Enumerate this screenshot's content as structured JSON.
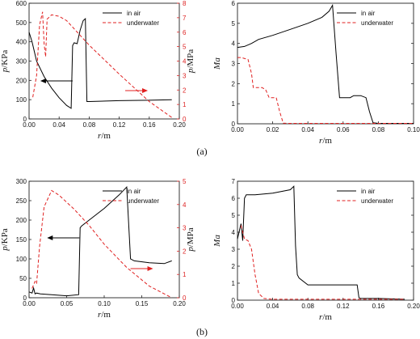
{
  "legend": {
    "air": "in air",
    "water": "underwater"
  },
  "colors": {
    "air": "#000000",
    "water": "#e02020"
  },
  "captions": [
    "(a)",
    "(b)"
  ],
  "chart_data": [
    {
      "panel": "a-left",
      "type": "line",
      "xlabel_var": "r",
      "xlabel_unit": "/m",
      "ylabel_var": "p",
      "ylabel_unit": "/KPa",
      "y2label_var": "p",
      "y2label_unit": "/MPa",
      "xlim": [
        0,
        0.2
      ],
      "ylim": [
        0,
        600
      ],
      "y2lim": [
        0,
        8
      ],
      "xticks": [
        "0.00",
        "0.04",
        "0.08",
        "0.12",
        "0.16",
        "0.20"
      ],
      "yticks": [
        "0",
        "100",
        "200",
        "300",
        "400",
        "500",
        "600"
      ],
      "y2ticks": [
        "0",
        "1",
        "2",
        "3",
        "4",
        "5",
        "6",
        "7",
        "8"
      ],
      "series": [
        {
          "name": "in air",
          "axis": "y",
          "x": [
            0,
            0.004,
            0.01,
            0.02,
            0.03,
            0.04,
            0.05,
            0.056,
            0.058,
            0.06,
            0.064,
            0.068,
            0.072,
            0.075,
            0.077,
            0.08,
            0.12,
            0.16,
            0.19
          ],
          "y": [
            450,
            400,
            300,
            220,
            160,
            110,
            70,
            55,
            380,
            395,
            390,
            460,
            510,
            520,
            90,
            90,
            95,
            97,
            100
          ]
        },
        {
          "name": "underwater",
          "axis": "y2",
          "x": [
            0.005,
            0.01,
            0.014,
            0.018,
            0.02,
            0.022,
            0.024,
            0.03,
            0.04,
            0.05,
            0.08,
            0.12,
            0.16,
            0.19
          ],
          "y": [
            1.5,
            3,
            6.5,
            7.4,
            5.2,
            4.3,
            6.9,
            7.2,
            7.1,
            6.8,
            5.1,
            3.1,
            1.2,
            0.1
          ]
        }
      ],
      "arrows": [
        {
          "dir": "left",
          "color": "#000000"
        },
        {
          "dir": "right",
          "color": "#e02020"
        }
      ]
    },
    {
      "panel": "a-right",
      "type": "line",
      "xlabel_var": "r",
      "xlabel_unit": "/m",
      "ylabel_var": "Ma",
      "ylabel_unit": "",
      "xlim": [
        0,
        0.1
      ],
      "ylim": [
        0,
        6
      ],
      "xticks": [
        "0.00",
        "0.02",
        "0.04",
        "0.06",
        "0.08",
        "0.10"
      ],
      "yticks": [
        "0",
        "1",
        "2",
        "3",
        "4",
        "5",
        "6"
      ],
      "series": [
        {
          "name": "in air",
          "x": [
            0,
            0.004,
            0.008,
            0.012,
            0.02,
            0.03,
            0.04,
            0.048,
            0.052,
            0.054,
            0.056,
            0.058,
            0.06,
            0.064,
            0.066,
            0.07,
            0.073,
            0.075,
            0.077,
            0.08,
            0.09,
            0.1
          ],
          "y": [
            3.8,
            3.85,
            4.0,
            4.2,
            4.4,
            4.7,
            5.0,
            5.3,
            5.6,
            5.9,
            3.5,
            1.3,
            1.3,
            1.3,
            1.4,
            1.4,
            1.3,
            0.6,
            0.05,
            0.02,
            0.02,
            0.02
          ]
        },
        {
          "name": "underwater",
          "x": [
            0,
            0.002,
            0.006,
            0.008,
            0.009,
            0.012,
            0.014,
            0.016,
            0.018,
            0.022,
            0.024,
            0.026,
            0.03,
            0.05,
            0.07,
            0.1
          ],
          "y": [
            3.3,
            3.3,
            3.2,
            2.5,
            1.8,
            1.8,
            1.8,
            1.7,
            1.3,
            1.3,
            0.6,
            0.03,
            0.02,
            0.02,
            0.02,
            0.02
          ]
        }
      ]
    },
    {
      "panel": "b-left",
      "type": "line",
      "xlabel_var": "r",
      "xlabel_unit": "/m",
      "ylabel_var": "p",
      "ylabel_unit": "/KPa",
      "y2label_var": "p",
      "y2label_unit": "/MPa",
      "xlim": [
        0,
        0.2
      ],
      "ylim": [
        0,
        300
      ],
      "y2lim": [
        0,
        5
      ],
      "xticks": [
        "0.00",
        "0.05",
        "0.10",
        "0.15",
        "0.20"
      ],
      "yticks": [
        "0",
        "50",
        "100",
        "150",
        "200",
        "250",
        "300"
      ],
      "y2ticks": [
        "0",
        "1",
        "2",
        "3",
        "4",
        "5"
      ],
      "series": [
        {
          "name": "in air",
          "axis": "y",
          "x": [
            0,
            0.004,
            0.006,
            0.008,
            0.01,
            0.015,
            0.03,
            0.05,
            0.066,
            0.068,
            0.07,
            0.08,
            0.1,
            0.12,
            0.13,
            0.135,
            0.14,
            0.16,
            0.18,
            0.19
          ],
          "y": [
            15,
            12,
            25,
            10,
            12,
            10,
            8,
            5,
            8,
            180,
            185,
            200,
            230,
            265,
            285,
            100,
            95,
            90,
            88,
            95
          ]
        },
        {
          "name": "underwater",
          "axis": "y2",
          "x": [
            0.004,
            0.008,
            0.01,
            0.014,
            0.02,
            0.03,
            0.04,
            0.06,
            0.08,
            0.1,
            0.13,
            0.16,
            0.19
          ],
          "y": [
            0.4,
            0.7,
            0.6,
            2.2,
            3.9,
            4.6,
            4.4,
            3.8,
            3.1,
            2.3,
            1.3,
            0.5,
            0
          ]
        }
      ],
      "arrows": [
        {
          "dir": "left",
          "color": "#000000"
        },
        {
          "dir": "right",
          "color": "#e02020"
        }
      ]
    },
    {
      "panel": "b-right",
      "type": "line",
      "xlabel_var": "r",
      "xlabel_unit": "/m",
      "ylabel_var": "Ma",
      "ylabel_unit": "",
      "xlim": [
        0,
        0.2
      ],
      "ylim": [
        0,
        7
      ],
      "xticks": [
        "0.00",
        "0.04",
        "0.08",
        "0.12",
        "0.16",
        "0.20"
      ],
      "yticks": [
        "0",
        "1",
        "2",
        "3",
        "4",
        "5",
        "6",
        "7"
      ],
      "series": [
        {
          "name": "in air",
          "x": [
            0,
            0.004,
            0.006,
            0.008,
            0.01,
            0.02,
            0.04,
            0.06,
            0.064,
            0.066,
            0.068,
            0.07,
            0.08,
            0.1,
            0.12,
            0.136,
            0.138,
            0.14,
            0.16,
            0.19
          ],
          "y": [
            3.6,
            4.5,
            3.5,
            6.0,
            6.2,
            6.2,
            6.3,
            6.5,
            6.7,
            3.2,
            1.5,
            1.3,
            0.9,
            0.9,
            0.9,
            0.9,
            0.15,
            0.1,
            0.1,
            0.05
          ]
        },
        {
          "name": "underwater",
          "x": [
            0.004,
            0.008,
            0.012,
            0.016,
            0.02,
            0.024,
            0.03,
            0.04,
            0.06,
            0.1,
            0.15,
            0.19
          ],
          "y": [
            4.4,
            3.6,
            3.5,
            3.0,
            1.5,
            0.4,
            0.1,
            0.05,
            0.05,
            0.05,
            0.05,
            0.05
          ]
        }
      ]
    }
  ]
}
